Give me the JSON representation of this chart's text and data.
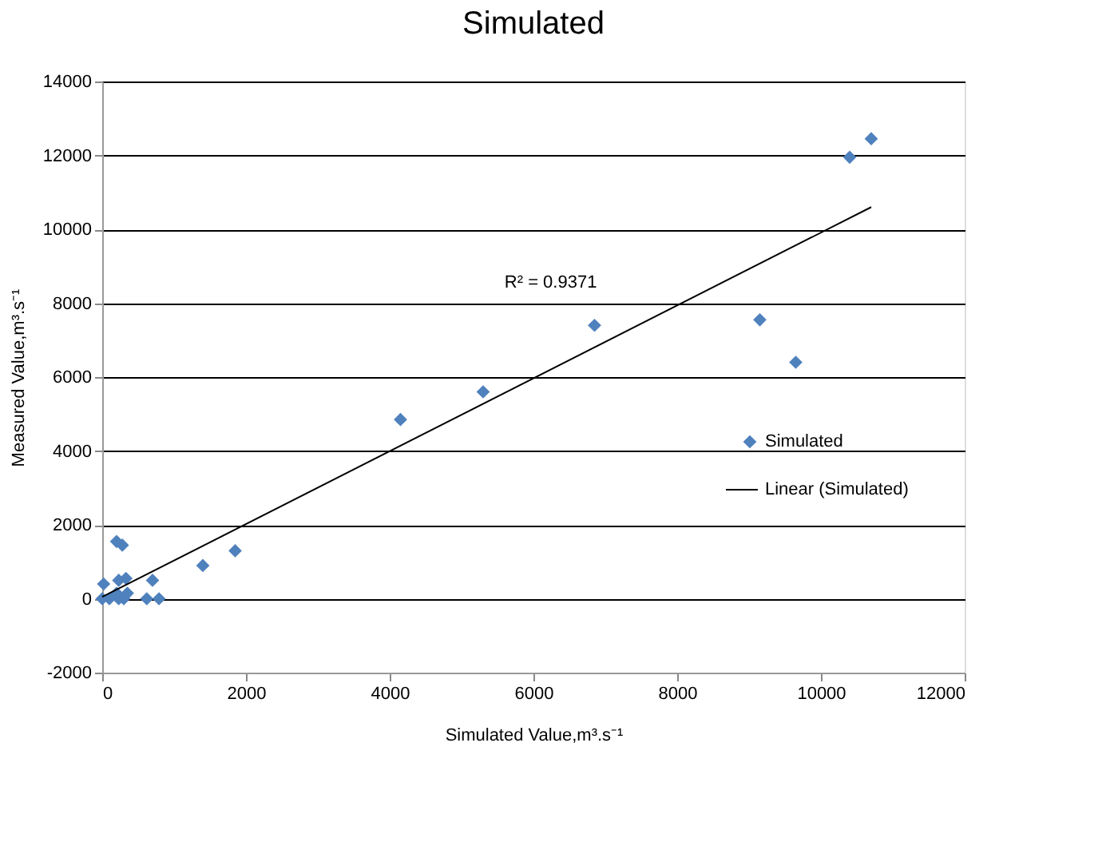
{
  "chart_data": {
    "type": "scatter",
    "title": "Simulated",
    "xlabel": "Simulated Value,m³.s⁻¹",
    "ylabel": "Measured Value,m³.s⁻¹",
    "xlim": [
      0,
      12000
    ],
    "xticks": [
      0,
      2000,
      4000,
      6000,
      8000,
      10000,
      12000
    ],
    "ylim": [
      -2000,
      14000
    ],
    "yticks": [
      -2000,
      0,
      2000,
      4000,
      6000,
      8000,
      10000,
      12000,
      14000
    ],
    "grid": "y",
    "legend": "bottom right",
    "marker": "diamond",
    "series": [
      {
        "name": "Simulated",
        "color": "#4f81bd",
        "x": [
          10700,
          10400,
          6850,
          9150,
          9650,
          5300,
          4150,
          1850,
          1400,
          200,
          280,
          700,
          330,
          230,
          20,
          620,
          790,
          300,
          230,
          100,
          0,
          350,
          200
        ],
        "values": [
          12450,
          11950,
          7400,
          7550,
          6400,
          5600,
          4850,
          1300,
          900,
          1550,
          1450,
          500,
          550,
          500,
          400,
          0,
          0,
          0,
          0,
          0,
          0,
          150,
          150
        ]
      },
      {
        "name": "Linear (Simulated)",
        "type": "line",
        "marker": "none",
        "color": "#000000",
        "x": [
          0,
          10700
        ],
        "values": [
          50,
          10600
        ]
      }
    ],
    "annotations": [
      "R² = 0.9371"
    ]
  }
}
